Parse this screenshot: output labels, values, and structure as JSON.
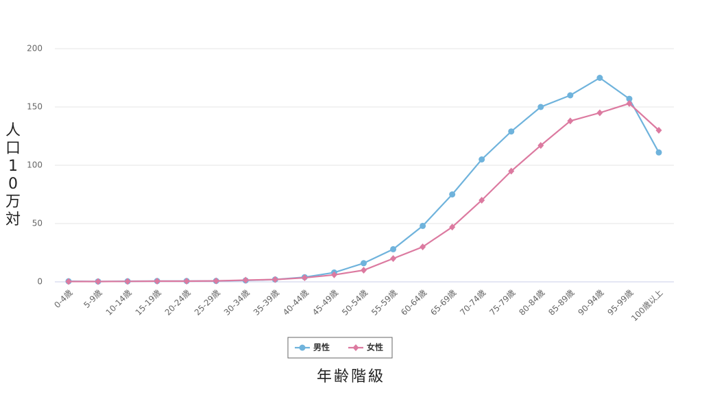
{
  "chart_data": {
    "type": "line",
    "y_label": "人口10万対",
    "x_label": "年齢階級",
    "categories": [
      "0-4歳",
      "5-9歳",
      "10-14歳",
      "15-19歳",
      "20-24歳",
      "25-29歳",
      "30-34歳",
      "35-39歳",
      "40-44歳",
      "45-49歳",
      "50-54歳",
      "55-59歳",
      "60-64歳",
      "65-69歳",
      "70-74歳",
      "75-79歳",
      "80-84歳",
      "85-89歳",
      "90-94歳",
      "95-99歳",
      "100歳以上"
    ],
    "series": [
      {
        "name": "男性",
        "color": "#6fb3dc",
        "marker": "circle",
        "values": [
          0.5,
          0.3,
          0.5,
          0.7,
          0.7,
          0.8,
          1.2,
          2,
          4,
          8,
          16,
          28,
          48,
          75,
          105,
          129,
          150,
          160,
          175,
          157,
          111
        ]
      },
      {
        "name": "女性",
        "color": "#dc7aa0",
        "marker": "diamond",
        "values": [
          0.3,
          0.3,
          0.4,
          0.6,
          0.6,
          0.8,
          1.5,
          2,
          3.5,
          6,
          10,
          20,
          30,
          47,
          70,
          95,
          117,
          138,
          145,
          153,
          130
        ]
      }
    ],
    "ylim": [
      0,
      200
    ],
    "yticks": [
      0,
      50,
      100,
      150,
      200
    ],
    "grid": true,
    "legend": "bottom"
  }
}
